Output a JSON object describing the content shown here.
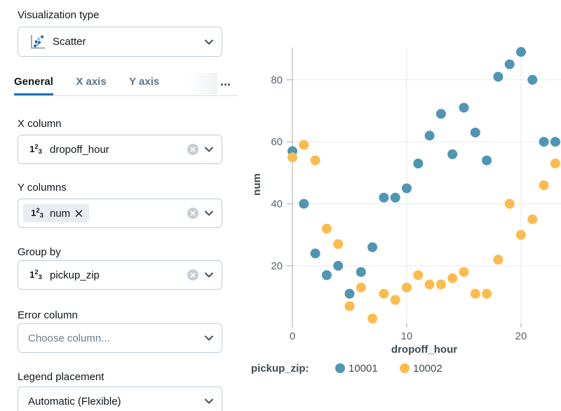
{
  "theme": {
    "accent": "#2272B4",
    "border": "#C0CDD8",
    "text": "#11171C"
  },
  "icons": {
    "number_glyph": {
      "a": "1",
      "b": "2",
      "c": "3"
    }
  },
  "sidebar": {
    "visualization_type": {
      "label": "Visualization type",
      "value": "Scatter"
    },
    "tabs": {
      "general": "General",
      "x_axis": "X axis",
      "y_axis": "Y axis",
      "overflow": "⋯"
    },
    "x_column": {
      "label": "X column",
      "value": "dropoff_hour"
    },
    "y_columns": {
      "label": "Y columns",
      "chip": "num"
    },
    "group_by": {
      "label": "Group by",
      "value": "pickup_zip"
    },
    "error_column": {
      "label": "Error column",
      "placeholder": "Choose column..."
    },
    "legend_placement": {
      "label": "Legend placement",
      "value": "Automatic (Flexible)"
    }
  },
  "chart_data": {
    "type": "scatter",
    "title": "",
    "xlabel": "dropoff_hour",
    "ylabel": "num",
    "legend_title": "pickup_zip:",
    "legend_position": "bottom",
    "grid": true,
    "xlim": [
      0,
      23.5
    ],
    "ylim": [
      0,
      90
    ],
    "x_ticks": [
      0,
      10,
      20
    ],
    "y_ticks": [
      20,
      40,
      60,
      80
    ],
    "x": [
      0,
      1,
      2,
      3,
      4,
      5,
      6,
      7,
      8,
      9,
      10,
      11,
      12,
      13,
      14,
      15,
      16,
      17,
      18,
      19,
      20,
      21,
      22,
      23
    ],
    "series": [
      {
        "name": "10001",
        "color": "#4E96B4",
        "values": [
          57,
          40,
          24,
          17,
          20,
          11,
          18,
          26,
          42,
          42,
          45,
          53,
          62,
          69,
          56,
          71,
          63,
          54,
          81,
          85,
          89,
          80,
          60,
          60
        ]
      },
      {
        "name": "10002",
        "color": "#FBBC4D",
        "values": [
          55,
          59,
          54,
          32,
          27,
          7,
          13,
          3,
          11,
          9,
          13,
          17,
          14,
          14,
          16,
          18,
          11,
          11,
          22,
          40,
          30,
          35,
          46,
          53
        ]
      }
    ]
  }
}
